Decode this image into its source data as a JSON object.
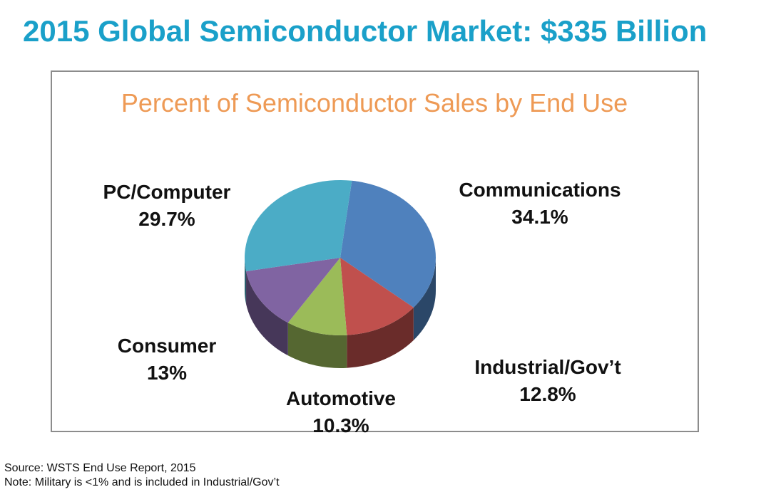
{
  "page": {
    "title": "2015 Global Semiconductor Market: $335 Billion",
    "title_color": "#1aa0c9",
    "source": "Source: WSTS End Use Report, 2015",
    "note": "Note: Military is <1% and is included in Industrial/Gov’t"
  },
  "chart_data": {
    "type": "pie",
    "title": "Percent of Semiconductor Sales by End Use",
    "title_color": "#ee9a55",
    "slices": [
      {
        "label": "Communications",
        "value_label": "34.1%",
        "value": 34.1,
        "color": "#4f81bd"
      },
      {
        "label": "Industrial/Gov’t",
        "value_label": "12.8%",
        "value": 12.8,
        "color": "#c0504d"
      },
      {
        "label": "Automotive",
        "value_label": "10.3%",
        "value": 10.3,
        "color": "#9bbb59"
      },
      {
        "label": "Consumer",
        "value_label": "13%",
        "value": 13,
        "color": "#8064a2"
      },
      {
        "label": "PC/Computer",
        "value_label": "29.7%",
        "value": 29.7,
        "color": "#4bacc6"
      }
    ]
  }
}
